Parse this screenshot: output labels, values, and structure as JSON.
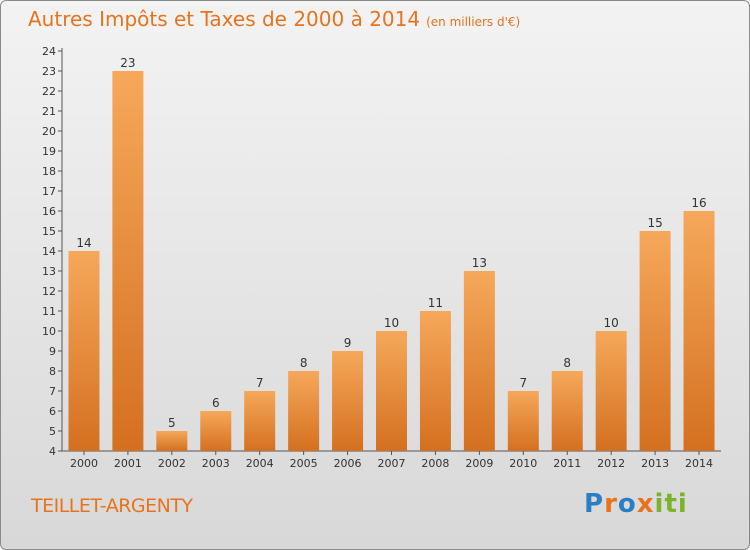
{
  "title": "Autres Impôts et Taxes de 2000 à 2014",
  "subtitle": "(en milliers d'€)",
  "commune": "TEILLET-ARGENTY",
  "logo": {
    "text": "Proxiti"
  },
  "colors": {
    "accent": "#e8731c",
    "bar_light": "#f6a85a",
    "bar_dark": "#d67422"
  },
  "chart_data": {
    "type": "bar",
    "categories": [
      "2000",
      "2001",
      "2002",
      "2003",
      "2004",
      "2005",
      "2006",
      "2007",
      "2008",
      "2009",
      "2010",
      "2011",
      "2012",
      "2013",
      "2014"
    ],
    "values": [
      14,
      23,
      5,
      6,
      7,
      8,
      9,
      10,
      11,
      13,
      7,
      8,
      10,
      15,
      16
    ],
    "ylim": [
      4,
      24
    ],
    "yticks": [
      4,
      5,
      6,
      7,
      8,
      9,
      10,
      11,
      12,
      13,
      14,
      15,
      16,
      17,
      18,
      19,
      20,
      21,
      22,
      23,
      24
    ],
    "grid": false,
    "data_labels": true
  }
}
